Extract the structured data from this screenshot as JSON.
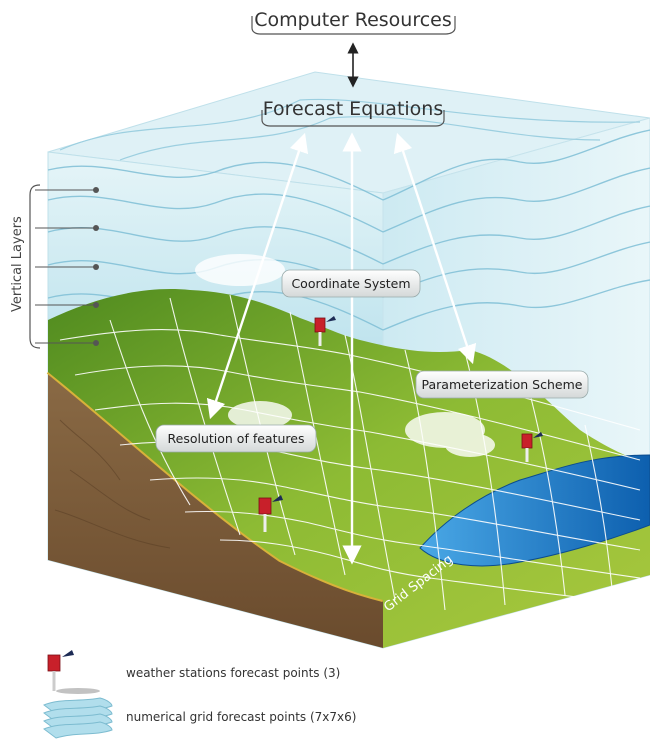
{
  "top_labels": {
    "computer_resources": "Computer Resources",
    "forecast_equations": "Forecast Equations"
  },
  "side_label": "Vertical Layers",
  "callouts": {
    "coordinate_system": "Coordinate System",
    "parameterization_scheme": "Parameterization Scheme",
    "resolution_of_features": "Resolution of features"
  },
  "grid_spacing_label": "Grid Spacing",
  "legend": {
    "stations": "weather stations forecast points (3)",
    "grid": "numerical grid forecast points (7x7x6)"
  },
  "icons": [
    "weather-station-icon",
    "grid-layers-icon"
  ],
  "colors": {
    "sky_top": "#d6eef3",
    "sky_mid": "#a8d6e6",
    "layer_line": "#6fb5cc",
    "grass": "#7cae2f",
    "soil": "#7b5a38",
    "lake": "#1a7fd1",
    "station_red": "#c8202a"
  }
}
